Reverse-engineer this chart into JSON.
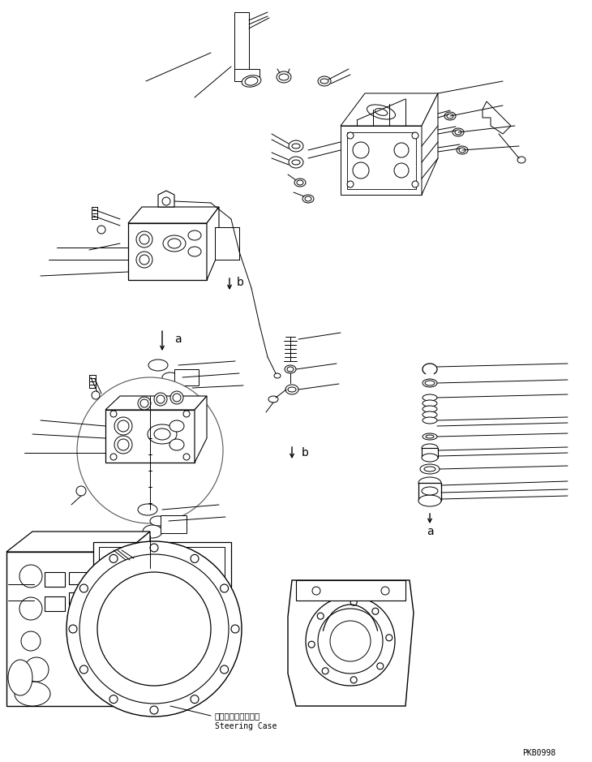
{
  "bg_color": "#ffffff",
  "line_color": "#000000",
  "fig_width": 7.3,
  "fig_height": 9.39,
  "dpi": 100,
  "watermark": "PKB0998",
  "label_steering": "ステアリングケース",
  "label_steering_en": "Steering Case"
}
